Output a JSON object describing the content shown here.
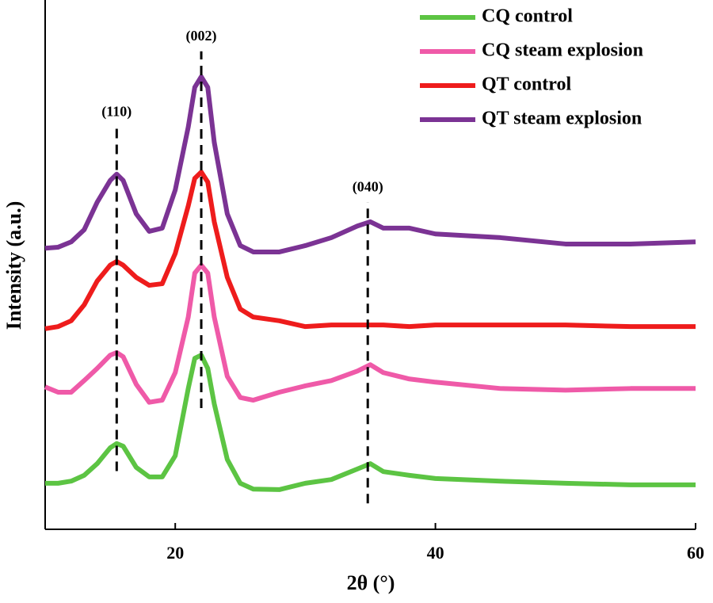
{
  "chart_data": {
    "type": "line",
    "x_label": "2θ (°)",
    "y_label": "Intensity (a.u.)",
    "x": [
      10,
      11,
      12,
      13,
      14,
      15,
      15.5,
      16,
      17,
      18,
      19,
      20,
      21,
      21.5,
      22,
      22.5,
      23,
      24,
      25,
      26,
      28,
      30,
      32,
      34,
      35,
      36,
      38,
      40,
      45,
      50,
      55,
      60
    ],
    "series": [
      {
        "name": "CQ control",
        "color": "#5cc443",
        "values": [
          8.7,
          8.7,
          9.1,
          10.2,
          12.4,
          15.4,
          16.2,
          15.7,
          11.7,
          9.9,
          9.9,
          13.9,
          26.6,
          32.3,
          32.9,
          30.4,
          23.7,
          13.2,
          8.7,
          7.6,
          7.5,
          8.7,
          9.4,
          11.4,
          12.4,
          10.9,
          10.2,
          9.6,
          9.1,
          8.7,
          8.4,
          8.4
        ]
      },
      {
        "name": "CQ steam explosion",
        "color": "#ef5aa8",
        "values": [
          26.9,
          25.9,
          25.9,
          28.1,
          30.4,
          32.9,
          33.4,
          32.6,
          27.4,
          24.0,
          24.4,
          29.6,
          40.1,
          48.4,
          49.9,
          48.4,
          40.1,
          28.9,
          24.9,
          24.4,
          25.9,
          27.1,
          28.1,
          29.9,
          31.1,
          29.6,
          28.4,
          27.8,
          26.6,
          26.3,
          26.6,
          26.6
        ]
      },
      {
        "name": "QT control",
        "color": "#ee1c1c",
        "values": [
          37.9,
          38.3,
          39.4,
          42.4,
          46.9,
          49.9,
          50.6,
          49.9,
          47.6,
          46.1,
          46.4,
          52.1,
          61.1,
          66.3,
          67.5,
          65.6,
          58.1,
          47.6,
          41.6,
          40.1,
          39.4,
          38.3,
          38.6,
          38.6,
          38.6,
          38.6,
          38.3,
          38.6,
          38.6,
          38.6,
          38.3,
          38.3
        ]
      },
      {
        "name": "QT steam explosion",
        "color": "#7b3394",
        "values": [
          53.1,
          53.3,
          54.3,
          56.6,
          61.8,
          65.9,
          67.1,
          65.9,
          59.6,
          56.3,
          56.9,
          64.1,
          76.0,
          83.5,
          85.5,
          83.5,
          73.1,
          59.6,
          53.6,
          52.4,
          52.4,
          53.6,
          55.1,
          57.3,
          58.1,
          56.9,
          56.9,
          55.8,
          55.1,
          53.9,
          53.9,
          54.3
        ]
      }
    ],
    "annotations": [
      {
        "label": "(110)",
        "x": 15.5,
        "y": [
          11,
          76
        ]
      },
      {
        "label": "(002)",
        "x": 22,
        "y": [
          22.9,
          90.3
        ]
      },
      {
        "label": "(040)",
        "x": 34.8,
        "y": [
          4.9,
          61.8
        ]
      }
    ],
    "xlim": [
      10,
      60
    ],
    "xticks": [
      20,
      40,
      60
    ],
    "ylim": [
      0,
      100
    ],
    "legend": "top-right"
  }
}
